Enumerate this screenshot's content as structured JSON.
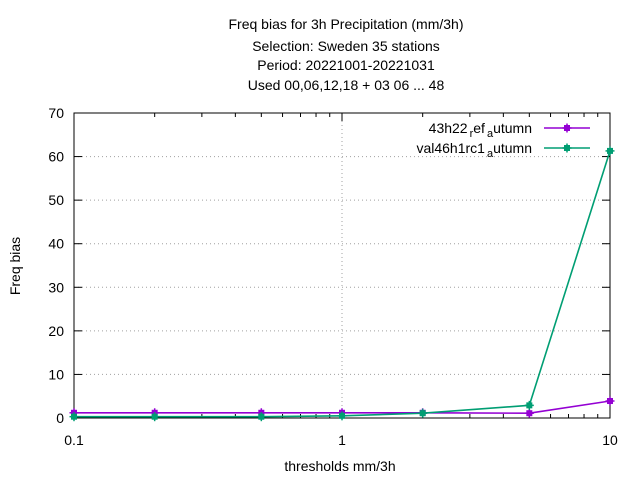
{
  "chart_data": {
    "type": "line",
    "title_lines": [
      "Freq bias  for 3h Precipitation (mm/3h)",
      "Selection: Sweden     35 stations",
      "Period: 20221001-20221031",
      "Used  00,06,12,18  + 03 06 ... 48"
    ],
    "xlabel": "thresholds mm/3h",
    "ylabel": "Freq bias",
    "xscale": "log",
    "xlim": [
      0.1,
      10
    ],
    "ylim": [
      0,
      70
    ],
    "xticks": [
      {
        "value": 0.1,
        "label": "0.1"
      },
      {
        "value": 1,
        "label": "1"
      },
      {
        "value": 10,
        "label": "10"
      }
    ],
    "yticks": [
      {
        "value": 0,
        "label": "0"
      },
      {
        "value": 10,
        "label": "10"
      },
      {
        "value": 20,
        "label": "20"
      },
      {
        "value": 30,
        "label": "30"
      },
      {
        "value": 40,
        "label": "40"
      },
      {
        "value": 50,
        "label": "50"
      },
      {
        "value": 60,
        "label": "60"
      },
      {
        "value": 70,
        "label": "70"
      }
    ],
    "grid": true,
    "legend_position": "top-right",
    "x": [
      0.1,
      0.2,
      0.5,
      1,
      2,
      5,
      10
    ],
    "series": [
      {
        "name_main": "43h22",
        "name_sub1": "r",
        "name_mid": "ef",
        "name_sub2": "a",
        "name_end": "utumn",
        "color": "#9400d3",
        "values": [
          1.2,
          1.2,
          1.2,
          1.2,
          1.2,
          1.1,
          3.9
        ]
      },
      {
        "name_main": "val46h1rc1",
        "name_sub1": "",
        "name_mid": "",
        "name_sub2": "a",
        "name_end": "utumn",
        "color": "#009e73",
        "values": [
          0.3,
          0.3,
          0.3,
          0.5,
          1.1,
          2.9,
          61.3
        ]
      }
    ]
  }
}
